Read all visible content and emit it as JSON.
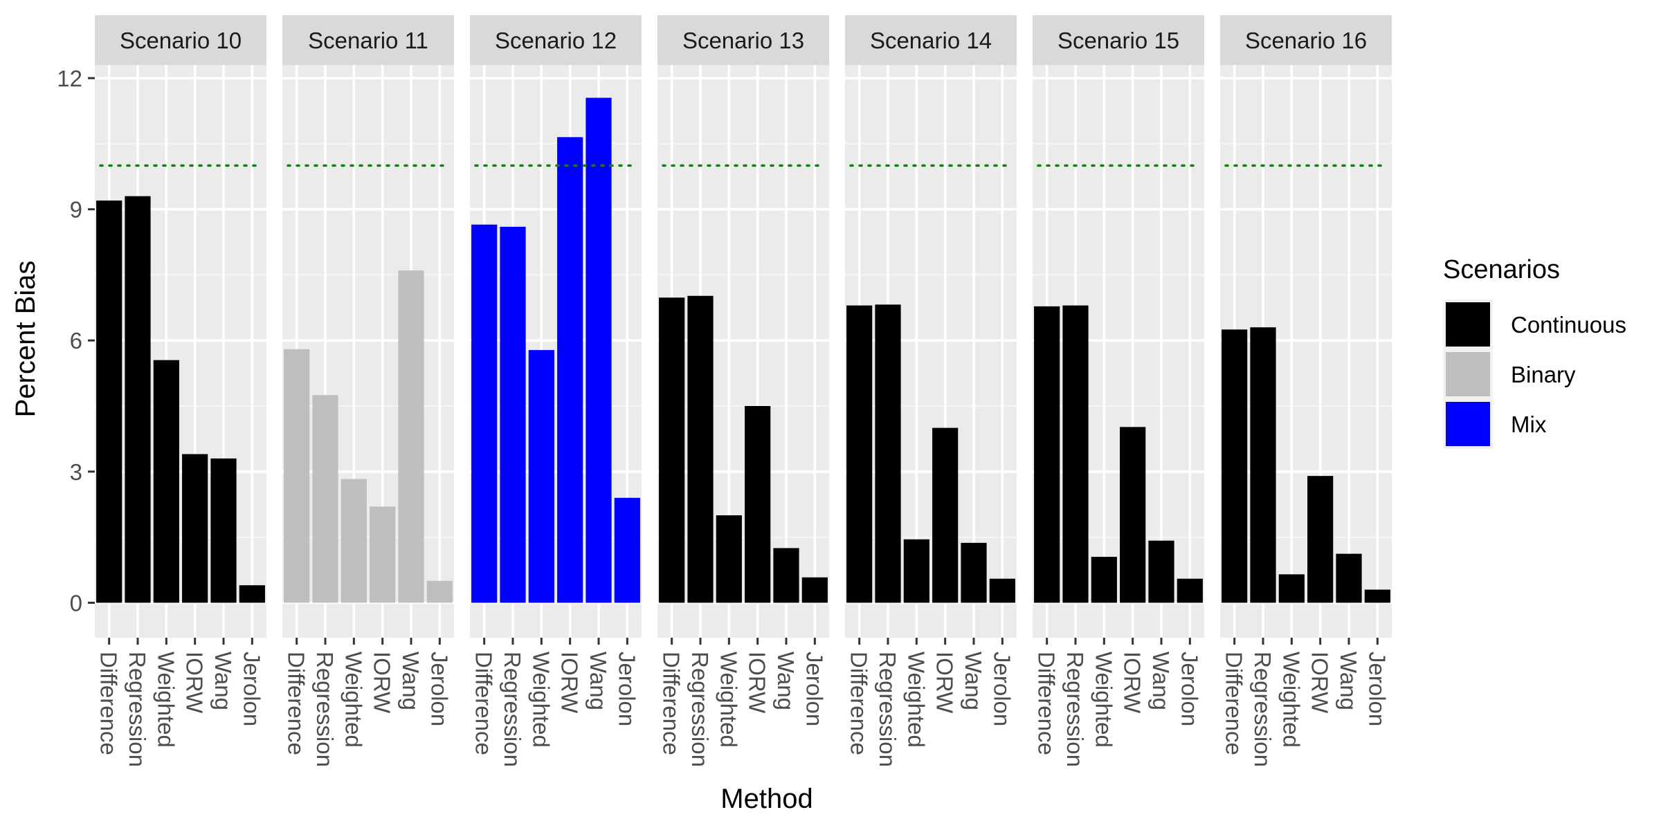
{
  "chart_data": {
    "type": "bar",
    "title": "",
    "xlabel": "Method",
    "ylabel": "Percent Bias",
    "ylim": [
      -0.8,
      12.3
    ],
    "yticks": [
      0,
      3,
      6,
      9,
      12
    ],
    "reference_line": {
      "y": 10,
      "style": "dotted",
      "color": "#1a7a1a"
    },
    "categories": [
      "Difference",
      "Regression",
      "Weighted",
      "IORW",
      "Wang",
      "Jerolon"
    ],
    "legend": {
      "title": "Scenarios",
      "position": "right",
      "entries": [
        {
          "label": "Continuous",
          "color": "#000000"
        },
        {
          "label": "Binary",
          "color": "#bebebe"
        },
        {
          "label": "Mix",
          "color": "#0000ff"
        }
      ]
    },
    "panels": [
      {
        "title": "Scenario 10",
        "group": "Continuous",
        "values": [
          9.2,
          9.3,
          5.55,
          3.4,
          3.3,
          0.4
        ]
      },
      {
        "title": "Scenario 11",
        "group": "Binary",
        "values": [
          5.8,
          4.75,
          2.83,
          2.2,
          7.6,
          0.5
        ]
      },
      {
        "title": "Scenario 12",
        "group": "Mix",
        "values": [
          8.65,
          8.6,
          5.78,
          10.65,
          11.55,
          2.4
        ]
      },
      {
        "title": "Scenario 13",
        "group": "Continuous",
        "values": [
          6.98,
          7.02,
          2.0,
          4.5,
          1.25,
          0.58
        ]
      },
      {
        "title": "Scenario 14",
        "group": "Continuous",
        "values": [
          6.8,
          6.82,
          1.45,
          4.0,
          1.37,
          0.55
        ]
      },
      {
        "title": "Scenario 15",
        "group": "Continuous",
        "values": [
          6.78,
          6.8,
          1.05,
          4.02,
          1.42,
          0.55
        ]
      },
      {
        "title": "Scenario 16",
        "group": "Continuous",
        "values": [
          6.25,
          6.3,
          0.65,
          2.9,
          1.12,
          0.3
        ]
      }
    ]
  }
}
